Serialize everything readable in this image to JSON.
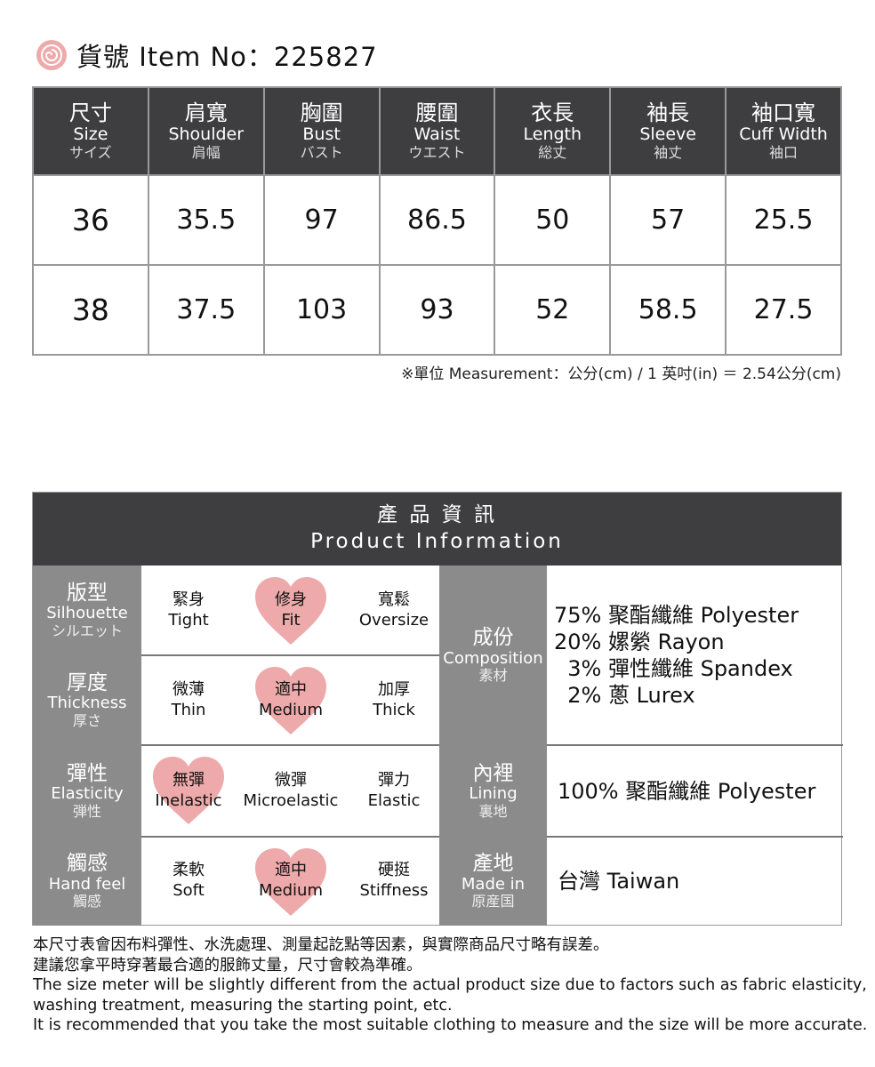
{
  "title": {
    "icon": "rose-icon",
    "text": "貨號 Item No：225827"
  },
  "size_table": {
    "headers": [
      {
        "zh": "尺寸",
        "en": "Size",
        "jp": "サイズ"
      },
      {
        "zh": "肩寬",
        "en": "Shoulder",
        "jp": "肩幅"
      },
      {
        "zh": "胸圍",
        "en": "Bust",
        "jp": "バスト"
      },
      {
        "zh": "腰圍",
        "en": "Waist",
        "jp": "ウエスト"
      },
      {
        "zh": "衣長",
        "en": "Length",
        "jp": "総丈"
      },
      {
        "zh": "袖長",
        "en": "Sleeve",
        "jp": "袖丈"
      },
      {
        "zh": "袖口寬",
        "en": "Cuff Width",
        "jp": "袖口"
      }
    ],
    "rows": [
      [
        "36",
        "35.5",
        "97",
        "86.5",
        "50",
        "57",
        "25.5"
      ],
      [
        "38",
        "37.5",
        "103",
        "93",
        "52",
        "58.5",
        "27.5"
      ]
    ],
    "note": "※單位 Measurement：公分(cm) / 1 英吋(in) ＝ 2.54公分(cm)"
  },
  "product_info": {
    "title_zh": "產 品 資 訊",
    "title_en": "Product Information",
    "heart_color": "#eeaaab",
    "attributes": [
      {
        "zh": "版型",
        "en": "Silhouette",
        "jp": "シルエット",
        "options": [
          {
            "zh": "緊身",
            "en": "Tight"
          },
          {
            "zh": "修身",
            "en": "Fit"
          },
          {
            "zh": "寬鬆",
            "en": "Oversize"
          }
        ],
        "selected": 1
      },
      {
        "zh": "厚度",
        "en": "Thickness",
        "jp": "厚さ",
        "options": [
          {
            "zh": "微薄",
            "en": "Thin"
          },
          {
            "zh": "適中",
            "en": "Medium"
          },
          {
            "zh": "加厚",
            "en": "Thick"
          }
        ],
        "selected": 1
      },
      {
        "zh": "彈性",
        "en": "Elasticity",
        "jp": "弾性",
        "options": [
          {
            "zh": "無彈",
            "en": "Inelastic"
          },
          {
            "zh": "微彈",
            "en": "Microelastic"
          },
          {
            "zh": "彈力",
            "en": "Elastic"
          }
        ],
        "selected": 0
      },
      {
        "zh": "觸感",
        "en": "Hand feel",
        "jp": "觸感",
        "options": [
          {
            "zh": "柔軟",
            "en": "Soft"
          },
          {
            "zh": "適中",
            "en": "Medium"
          },
          {
            "zh": "硬挺",
            "en": "Stiffness"
          }
        ],
        "selected": 1
      }
    ],
    "details": [
      {
        "zh": "成份",
        "en": "Composition",
        "jp": "素材",
        "values": [
          "75% 聚酯纖維 Polyester",
          "20% 嫘縈 Rayon",
          "  3% 彈性纖維 Spandex",
          "  2% 蔥 Lurex"
        ]
      },
      {
        "zh": "內裡",
        "en": "Lining",
        "jp": "裏地",
        "values": [
          "100% 聚酯纖維 Polyester"
        ]
      },
      {
        "zh": "產地",
        "en": "Made in",
        "jp": "原産国",
        "values": [
          "台灣 Taiwan"
        ]
      }
    ]
  },
  "footer": [
    "本尺寸表會因布料彈性、水洗處理、測量起訖點等因素，與實際商品尺寸略有誤差。",
    "建議您拿平時穿著最合適的服飾丈量，尺寸會較為準確。",
    "The size meter will be slightly different from the actual product size due to factors such as fabric elasticity,",
    "washing treatment, measuring the starting point, etc.",
    "It is recommended that you take the most suitable clothing to measure and the size will be more accurate."
  ]
}
